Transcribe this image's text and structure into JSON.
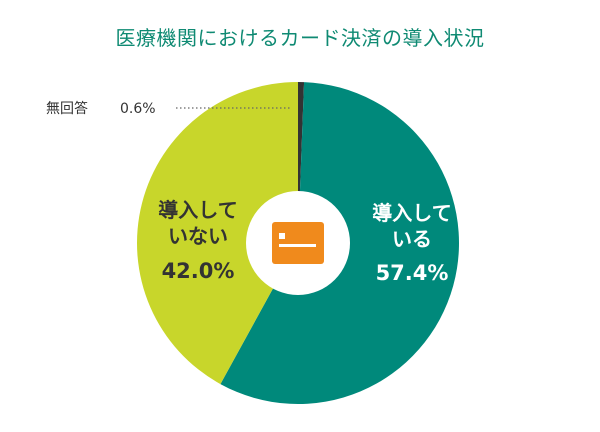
{
  "chart_data": {
    "type": "pie",
    "title": "医療機関におけるカード決済の導入状況",
    "slices": [
      {
        "label_lines": [
          "導入して",
          "いる"
        ],
        "value": 57.4,
        "value_label": "57.4%",
        "color": "#00897b",
        "text_color": "#ffffff"
      },
      {
        "label_lines": [
          "導入して",
          "いない"
        ],
        "value": 42.0,
        "value_label": "42.0%",
        "color": "#c8d62b",
        "text_color": "#333333"
      },
      {
        "label": "無回答",
        "value": 0.6,
        "value_label": "0.6%",
        "color": "#333333",
        "text_color": "#333333"
      }
    ],
    "start_angle": "top",
    "direction": "clockwise"
  },
  "center_icon": "credit-card-icon",
  "colors": {
    "title": "#0f8a73",
    "icon": "#f08a1c"
  }
}
